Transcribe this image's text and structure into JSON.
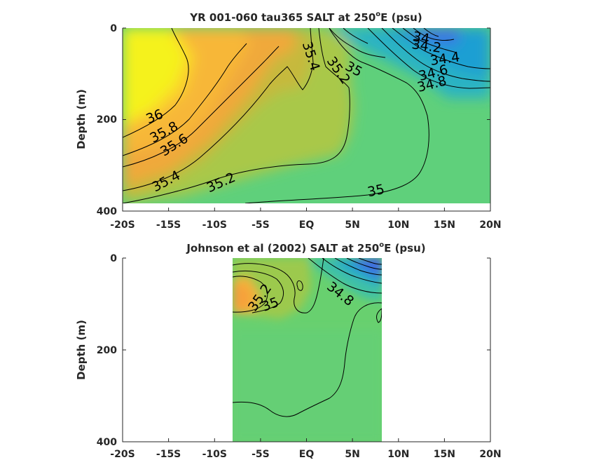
{
  "chart_data": [
    {
      "type": "heatmap",
      "title": "YR 001-060 tau365 SALT at 250",
      "title_sup": "o",
      "title_end": "E (psu)",
      "ylabel": "Depth (m)",
      "xlim": [
        -20,
        20
      ],
      "ylim": [
        400,
        0
      ],
      "x_ticks": [
        "-20S",
        "-15S",
        "-10S",
        "-5S",
        "EQ",
        "5N",
        "10N",
        "15N",
        "20N"
      ],
      "y_ticks": [
        "0",
        "200",
        "400"
      ],
      "data_extent_x": [
        -20,
        20
      ],
      "data_extent_depth": [
        0,
        385
      ],
      "contour_labels": [
        "36",
        "35.8",
        "35.6",
        "35.4",
        "35.2",
        "35",
        "35.4",
        "35.2",
        "35",
        "34",
        "34.2",
        "34.4",
        "34.6",
        "34.8"
      ],
      "colormap": "parula",
      "color_range_psu": [
        34.0,
        36.0
      ]
    },
    {
      "type": "heatmap",
      "title": "Johnson et al (2002) SALT at 250",
      "title_sup": "o",
      "title_end": "E (psu)",
      "ylabel": "Depth (m)",
      "xlim": [
        -20,
        20
      ],
      "ylim": [
        400,
        0
      ],
      "x_ticks": [
        "-20S",
        "-15S",
        "-10S",
        "-5S",
        "EQ",
        "5N",
        "10N",
        "15N",
        "20N"
      ],
      "y_ticks": [
        "0",
        "200",
        "400"
      ],
      "data_extent_x": [
        -8,
        8
      ],
      "data_extent_depth": [
        0,
        400
      ],
      "contour_labels": [
        "35.2",
        "35",
        "34.8"
      ],
      "colormap": "parula",
      "color_range_psu": [
        34.0,
        36.0
      ]
    }
  ]
}
